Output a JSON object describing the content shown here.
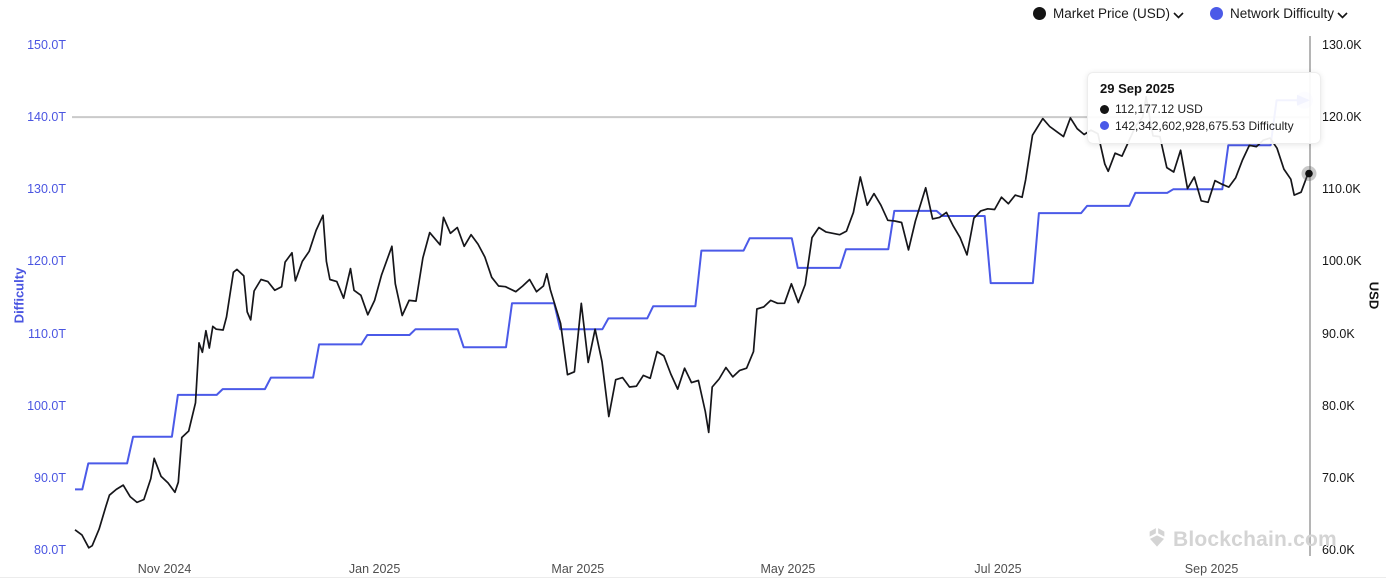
{
  "legend": {
    "items": [
      {
        "label": "Market Price (USD)",
        "color": "#141414"
      },
      {
        "label": "Network Difficulty",
        "color": "#4b5ae8"
      }
    ]
  },
  "tooltip": {
    "date": "29 Sep 2025",
    "rows": [
      {
        "color": "#141414",
        "text": "112,177.12 USD"
      },
      {
        "color": "#4b5ae8",
        "text": "142,342,602,928,675.53 Difficulty"
      }
    ]
  },
  "watermark": {
    "text": "Blockchain.com"
  },
  "chart_data": {
    "type": "line",
    "title": "",
    "x_range": [
      "2024-10-06",
      "2025-09-29"
    ],
    "x_ticks": [
      {
        "label": "Nov 2024",
        "date": "2024-11-01"
      },
      {
        "label": "Jan 2025",
        "date": "2025-01-01"
      },
      {
        "label": "Mar 2025",
        "date": "2025-03-01"
      },
      {
        "label": "May 2025",
        "date": "2025-05-01"
      },
      {
        "label": "Jul 2025",
        "date": "2025-07-01"
      },
      {
        "label": "Sep 2025",
        "date": "2025-09-01"
      }
    ],
    "left_axis": {
      "title": "Difficulty",
      "unit": "T (trillions)",
      "range": [
        80,
        150
      ],
      "ticks": [
        "150.0T",
        "140.0T",
        "130.0T",
        "120.0T",
        "110.0T",
        "100.0T",
        "90.0T",
        "80.0T"
      ],
      "color": "#4a55e1"
    },
    "right_axis": {
      "title": "USD",
      "unit": "K (thousands)",
      "range": [
        60,
        130
      ],
      "ticks": [
        "130.0K",
        "120.0K",
        "110.0K",
        "100.0K",
        "90.0K",
        "80.0K",
        "70.0K",
        "60.0K"
      ],
      "color": "#161616"
    },
    "gridline_at": {
      "left": "140.0T",
      "right": "120.0K"
    },
    "cursor_date": "2025-09-29",
    "end_markers": [
      {
        "series": "Network Difficulty",
        "shape": "arrow-right",
        "value": 142.34
      },
      {
        "series": "Market Price (USD)",
        "shape": "dot",
        "value": 112.18
      }
    ],
    "series": [
      {
        "name": "Market Price (USD)",
        "axis": "right",
        "style": "line",
        "color": "#16161a",
        "unit": "thousand USD",
        "points": [
          [
            "2024-10-06",
            62.8
          ],
          [
            "2024-10-08",
            62.1
          ],
          [
            "2024-10-10",
            60.3
          ],
          [
            "2024-10-11",
            60.6
          ],
          [
            "2024-10-13",
            62.9
          ],
          [
            "2024-10-15",
            66.1
          ],
          [
            "2024-10-16",
            67.6
          ],
          [
            "2024-10-18",
            68.4
          ],
          [
            "2024-10-20",
            69.0
          ],
          [
            "2024-10-22",
            67.4
          ],
          [
            "2024-10-24",
            66.6
          ],
          [
            "2024-10-26",
            67.0
          ],
          [
            "2024-10-28",
            69.9
          ],
          [
            "2024-10-29",
            72.7
          ],
          [
            "2024-10-31",
            70.2
          ],
          [
            "2024-11-02",
            69.3
          ],
          [
            "2024-11-04",
            68.0
          ],
          [
            "2024-11-05",
            69.4
          ],
          [
            "2024-11-06",
            75.6
          ],
          [
            "2024-11-08",
            76.5
          ],
          [
            "2024-11-10",
            80.4
          ],
          [
            "2024-11-11",
            88.7
          ],
          [
            "2024-11-12",
            87.4
          ],
          [
            "2024-11-13",
            90.4
          ],
          [
            "2024-11-14",
            88.0
          ],
          [
            "2024-11-15",
            91.0
          ],
          [
            "2024-11-16",
            90.6
          ],
          [
            "2024-11-18",
            90.5
          ],
          [
            "2024-11-19",
            92.3
          ],
          [
            "2024-11-21",
            98.5
          ],
          [
            "2024-11-22",
            98.9
          ],
          [
            "2024-11-24",
            98.0
          ],
          [
            "2024-11-25",
            93.0
          ],
          [
            "2024-11-26",
            91.9
          ],
          [
            "2024-11-27",
            95.9
          ],
          [
            "2024-11-29",
            97.5
          ],
          [
            "2024-12-01",
            97.2
          ],
          [
            "2024-12-03",
            96.0
          ],
          [
            "2024-12-05",
            96.5
          ],
          [
            "2024-12-06",
            99.9
          ],
          [
            "2024-12-08",
            101.2
          ],
          [
            "2024-12-09",
            97.3
          ],
          [
            "2024-12-11",
            100.0
          ],
          [
            "2024-12-13",
            101.4
          ],
          [
            "2024-12-15",
            104.3
          ],
          [
            "2024-12-17",
            106.4
          ],
          [
            "2024-12-18",
            100.0
          ],
          [
            "2024-12-19",
            97.5
          ],
          [
            "2024-12-21",
            97.2
          ],
          [
            "2024-12-23",
            94.9
          ],
          [
            "2024-12-25",
            99.0
          ],
          [
            "2024-12-26",
            96.0
          ],
          [
            "2024-12-28",
            95.3
          ],
          [
            "2024-12-30",
            92.6
          ],
          [
            "2025-01-01",
            94.6
          ],
          [
            "2025-01-03",
            98.1
          ],
          [
            "2025-01-06",
            102.1
          ],
          [
            "2025-01-07",
            96.9
          ],
          [
            "2025-01-09",
            92.5
          ],
          [
            "2025-01-11",
            94.6
          ],
          [
            "2025-01-13",
            94.5
          ],
          [
            "2025-01-15",
            100.5
          ],
          [
            "2025-01-17",
            104.0
          ],
          [
            "2025-01-20",
            102.3
          ],
          [
            "2025-01-21",
            106.1
          ],
          [
            "2025-01-23",
            103.9
          ],
          [
            "2025-01-25",
            104.7
          ],
          [
            "2025-01-27",
            102.1
          ],
          [
            "2025-01-29",
            103.7
          ],
          [
            "2025-01-31",
            102.4
          ],
          [
            "2025-02-02",
            100.6
          ],
          [
            "2025-02-04",
            97.8
          ],
          [
            "2025-02-06",
            96.6
          ],
          [
            "2025-02-08",
            96.5
          ],
          [
            "2025-02-11",
            95.8
          ],
          [
            "2025-02-13",
            96.6
          ],
          [
            "2025-02-15",
            97.5
          ],
          [
            "2025-02-17",
            95.8
          ],
          [
            "2025-02-19",
            96.6
          ],
          [
            "2025-02-20",
            98.3
          ],
          [
            "2025-02-21",
            96.1
          ],
          [
            "2025-02-24",
            91.4
          ],
          [
            "2025-02-26",
            84.3
          ],
          [
            "2025-02-28",
            84.7
          ],
          [
            "2025-03-02",
            94.2
          ],
          [
            "2025-03-04",
            86.0
          ],
          [
            "2025-03-06",
            90.6
          ],
          [
            "2025-03-08",
            86.1
          ],
          [
            "2025-03-10",
            78.5
          ],
          [
            "2025-03-12",
            83.6
          ],
          [
            "2025-03-14",
            83.9
          ],
          [
            "2025-03-16",
            82.6
          ],
          [
            "2025-03-18",
            82.7
          ],
          [
            "2025-03-20",
            84.2
          ],
          [
            "2025-03-22",
            83.8
          ],
          [
            "2025-03-24",
            87.5
          ],
          [
            "2025-03-26",
            86.9
          ],
          [
            "2025-03-28",
            84.4
          ],
          [
            "2025-03-30",
            82.3
          ],
          [
            "2025-04-01",
            85.2
          ],
          [
            "2025-04-03",
            83.2
          ],
          [
            "2025-04-05",
            83.5
          ],
          [
            "2025-04-07",
            79.2
          ],
          [
            "2025-04-08",
            76.3
          ],
          [
            "2025-04-09",
            82.6
          ],
          [
            "2025-04-11",
            83.7
          ],
          [
            "2025-04-13",
            85.3
          ],
          [
            "2025-04-15",
            84.0
          ],
          [
            "2025-04-17",
            84.9
          ],
          [
            "2025-04-19",
            85.2
          ],
          [
            "2025-04-21",
            87.5
          ],
          [
            "2025-04-22",
            93.4
          ],
          [
            "2025-04-24",
            93.7
          ],
          [
            "2025-04-26",
            94.6
          ],
          [
            "2025-04-28",
            94.2
          ],
          [
            "2025-04-30",
            94.2
          ],
          [
            "2025-05-02",
            96.9
          ],
          [
            "2025-05-04",
            94.3
          ],
          [
            "2025-05-06",
            96.8
          ],
          [
            "2025-05-08",
            103.3
          ],
          [
            "2025-05-10",
            104.7
          ],
          [
            "2025-05-12",
            104.1
          ],
          [
            "2025-05-14",
            103.9
          ],
          [
            "2025-05-16",
            103.7
          ],
          [
            "2025-05-18",
            104.2
          ],
          [
            "2025-05-20",
            106.8
          ],
          [
            "2025-05-22",
            111.7
          ],
          [
            "2025-05-24",
            107.8
          ],
          [
            "2025-05-26",
            109.4
          ],
          [
            "2025-05-28",
            107.8
          ],
          [
            "2025-05-30",
            105.7
          ],
          [
            "2025-06-01",
            105.6
          ],
          [
            "2025-06-03",
            105.4
          ],
          [
            "2025-06-05",
            101.6
          ],
          [
            "2025-06-07",
            105.6
          ],
          [
            "2025-06-09",
            108.7
          ],
          [
            "2025-06-10",
            110.2
          ],
          [
            "2025-06-12",
            105.9
          ],
          [
            "2025-06-14",
            106.1
          ],
          [
            "2025-06-16",
            106.8
          ],
          [
            "2025-06-18",
            104.9
          ],
          [
            "2025-06-20",
            103.3
          ],
          [
            "2025-06-22",
            100.9
          ],
          [
            "2025-06-24",
            106.0
          ],
          [
            "2025-06-26",
            107.0
          ],
          [
            "2025-06-28",
            107.3
          ],
          [
            "2025-06-30",
            107.2
          ],
          [
            "2025-07-02",
            108.9
          ],
          [
            "2025-07-04",
            108.0
          ],
          [
            "2025-07-06",
            109.2
          ],
          [
            "2025-07-08",
            108.9
          ],
          [
            "2025-07-09",
            111.3
          ],
          [
            "2025-07-11",
            117.5
          ],
          [
            "2025-07-14",
            119.8
          ],
          [
            "2025-07-16",
            118.7
          ],
          [
            "2025-07-18",
            118.0
          ],
          [
            "2025-07-20",
            117.3
          ],
          [
            "2025-07-22",
            119.9
          ],
          [
            "2025-07-24",
            118.4
          ],
          [
            "2025-07-26",
            117.6
          ],
          [
            "2025-07-28",
            118.2
          ],
          [
            "2025-07-30",
            117.7
          ],
          [
            "2025-08-01",
            113.5
          ],
          [
            "2025-08-02",
            112.5
          ],
          [
            "2025-08-04",
            115.0
          ],
          [
            "2025-08-06",
            114.6
          ],
          [
            "2025-08-08",
            116.7
          ],
          [
            "2025-08-10",
            118.8
          ],
          [
            "2025-08-12",
            120.0
          ],
          [
            "2025-08-13",
            122.8
          ],
          [
            "2025-08-15",
            117.4
          ],
          [
            "2025-08-17",
            117.3
          ],
          [
            "2025-08-19",
            113.0
          ],
          [
            "2025-08-21",
            112.4
          ],
          [
            "2025-08-23",
            115.4
          ],
          [
            "2025-08-25",
            110.1
          ],
          [
            "2025-08-27",
            111.7
          ],
          [
            "2025-08-29",
            108.4
          ],
          [
            "2025-08-31",
            108.2
          ],
          [
            "2025-09-02",
            111.2
          ],
          [
            "2025-09-04",
            110.7
          ],
          [
            "2025-09-06",
            110.3
          ],
          [
            "2025-09-08",
            111.6
          ],
          [
            "2025-09-10",
            114.1
          ],
          [
            "2025-09-12",
            116.1
          ],
          [
            "2025-09-14",
            115.9
          ],
          [
            "2025-09-16",
            116.8
          ],
          [
            "2025-09-18",
            117.1
          ],
          [
            "2025-09-20",
            115.7
          ],
          [
            "2025-09-22",
            112.8
          ],
          [
            "2025-09-24",
            111.4
          ],
          [
            "2025-09-25",
            109.2
          ],
          [
            "2025-09-27",
            109.6
          ],
          [
            "2025-09-29",
            112.18
          ]
        ]
      },
      {
        "name": "Network Difficulty",
        "axis": "left",
        "style": "step",
        "color": "#4b5ae8",
        "unit": "trillion",
        "points": [
          [
            "2024-10-06",
            88.4
          ],
          [
            "2024-10-09",
            92.0
          ],
          [
            "2024-10-22",
            95.7
          ],
          [
            "2024-11-04",
            101.5
          ],
          [
            "2024-11-17",
            102.3
          ],
          [
            "2024-12-01",
            103.9
          ],
          [
            "2024-12-15",
            108.5
          ],
          [
            "2024-12-29",
            109.8
          ],
          [
            "2025-01-12",
            110.6
          ],
          [
            "2025-01-26",
            108.1
          ],
          [
            "2025-02-09",
            114.2
          ],
          [
            "2025-02-23",
            110.6
          ],
          [
            "2025-03-09",
            112.1
          ],
          [
            "2025-03-22",
            113.8
          ],
          [
            "2025-04-05",
            121.5
          ],
          [
            "2025-04-19",
            123.2
          ],
          [
            "2025-05-03",
            119.1
          ],
          [
            "2025-05-17",
            121.7
          ],
          [
            "2025-05-31",
            127.0
          ],
          [
            "2025-06-14",
            126.3
          ],
          [
            "2025-06-28",
            117.0
          ],
          [
            "2025-07-12",
            126.7
          ],
          [
            "2025-07-26",
            127.7
          ],
          [
            "2025-08-09",
            129.5
          ],
          [
            "2025-08-20",
            130.0
          ],
          [
            "2025-09-05",
            136.1
          ],
          [
            "2025-09-19",
            142.34
          ]
        ]
      }
    ]
  }
}
